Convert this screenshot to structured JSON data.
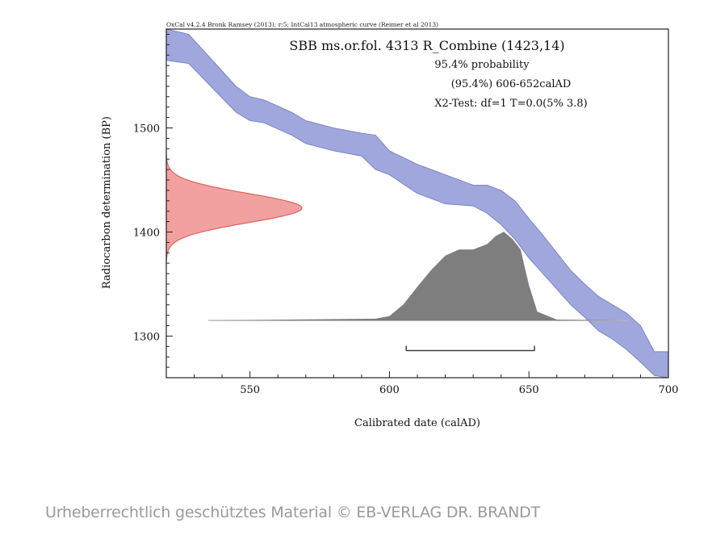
{
  "chart_data": {
    "type": "area",
    "credit": "OxCal v4.2.4 Bronk Ramsey (2013); r:5; IntCal13 atmospheric curve (Reimer et al 2013)",
    "title": "SBB ms.or.fol. 4313 R_Combine (1423,14)",
    "annotations": [
      "95.4% probability",
      "(95.4%) 606-652calAD",
      "X2-Test: df=1 T=0.0(5% 3.8)"
    ],
    "xlabel": "Calibrated date (calAD)",
    "ylabel": "Radiocarbon determination (BP)",
    "xlim": [
      520,
      700
    ],
    "ylim": [
      1260,
      1595
    ],
    "x_ticks": [
      550,
      600,
      650,
      700
    ],
    "y_ticks": [
      1300,
      1400,
      1500
    ],
    "grid": false,
    "calibration_curve": {
      "name": "IntCal13",
      "color": "#8f98d6",
      "points": [
        {
          "x": 520,
          "upper": 1595,
          "lower": 1565
        },
        {
          "x": 528,
          "upper": 1590,
          "lower": 1562
        },
        {
          "x": 545,
          "upper": 1540,
          "lower": 1515
        },
        {
          "x": 550,
          "upper": 1530,
          "lower": 1507
        },
        {
          "x": 555,
          "upper": 1527,
          "lower": 1505
        },
        {
          "x": 565,
          "upper": 1515,
          "lower": 1493
        },
        {
          "x": 570,
          "upper": 1507,
          "lower": 1485
        },
        {
          "x": 580,
          "upper": 1500,
          "lower": 1478
        },
        {
          "x": 590,
          "upper": 1495,
          "lower": 1473
        },
        {
          "x": 595,
          "upper": 1493,
          "lower": 1460
        },
        {
          "x": 600,
          "upper": 1478,
          "lower": 1455
        },
        {
          "x": 610,
          "upper": 1465,
          "lower": 1437
        },
        {
          "x": 620,
          "upper": 1455,
          "lower": 1427
        },
        {
          "x": 630,
          "upper": 1445,
          "lower": 1425
        },
        {
          "x": 635,
          "upper": 1445,
          "lower": 1418
        },
        {
          "x": 640,
          "upper": 1440,
          "lower": 1407
        },
        {
          "x": 645,
          "upper": 1430,
          "lower": 1393
        },
        {
          "x": 650,
          "upper": 1413,
          "lower": 1375
        },
        {
          "x": 655,
          "upper": 1397,
          "lower": 1360
        },
        {
          "x": 660,
          "upper": 1380,
          "lower": 1345
        },
        {
          "x": 665,
          "upper": 1363,
          "lower": 1330
        },
        {
          "x": 670,
          "upper": 1350,
          "lower": 1318
        },
        {
          "x": 675,
          "upper": 1338,
          "lower": 1305
        },
        {
          "x": 680,
          "upper": 1330,
          "lower": 1297
        },
        {
          "x": 685,
          "upper": 1322,
          "lower": 1287
        },
        {
          "x": 690,
          "upper": 1310,
          "lower": 1275
        },
        {
          "x": 695,
          "upper": 1285,
          "lower": 1262
        },
        {
          "x": 700,
          "upper": 1285,
          "lower": 1260
        }
      ]
    },
    "radiocarbon_distribution": {
      "mean": 1423,
      "sd": 14,
      "color": "#f2a0a0",
      "edge_color": "#d9534f"
    },
    "calibrated_distribution": {
      "color": "#6b6c6b",
      "points": [
        {
          "x": 535,
          "p": 0
        },
        {
          "x": 595,
          "p": 0.02
        },
        {
          "x": 600,
          "p": 0.05
        },
        {
          "x": 605,
          "p": 0.18
        },
        {
          "x": 610,
          "p": 0.38
        },
        {
          "x": 615,
          "p": 0.57
        },
        {
          "x": 620,
          "p": 0.73
        },
        {
          "x": 625,
          "p": 0.8
        },
        {
          "x": 630,
          "p": 0.8
        },
        {
          "x": 635,
          "p": 0.86
        },
        {
          "x": 638,
          "p": 0.95
        },
        {
          "x": 641,
          "p": 1.0
        },
        {
          "x": 644,
          "p": 0.92
        },
        {
          "x": 647,
          "p": 0.8
        },
        {
          "x": 650,
          "p": 0.4
        },
        {
          "x": 653,
          "p": 0.1
        },
        {
          "x": 660,
          "p": 0.01
        },
        {
          "x": 685,
          "p": 0
        }
      ]
    },
    "range_bar": {
      "from": 606,
      "to": 652,
      "probability": "95.4%"
    }
  },
  "watermark": "Urheberrechtlich geschütztes Material © EB-VERLAG DR. BRANDT"
}
